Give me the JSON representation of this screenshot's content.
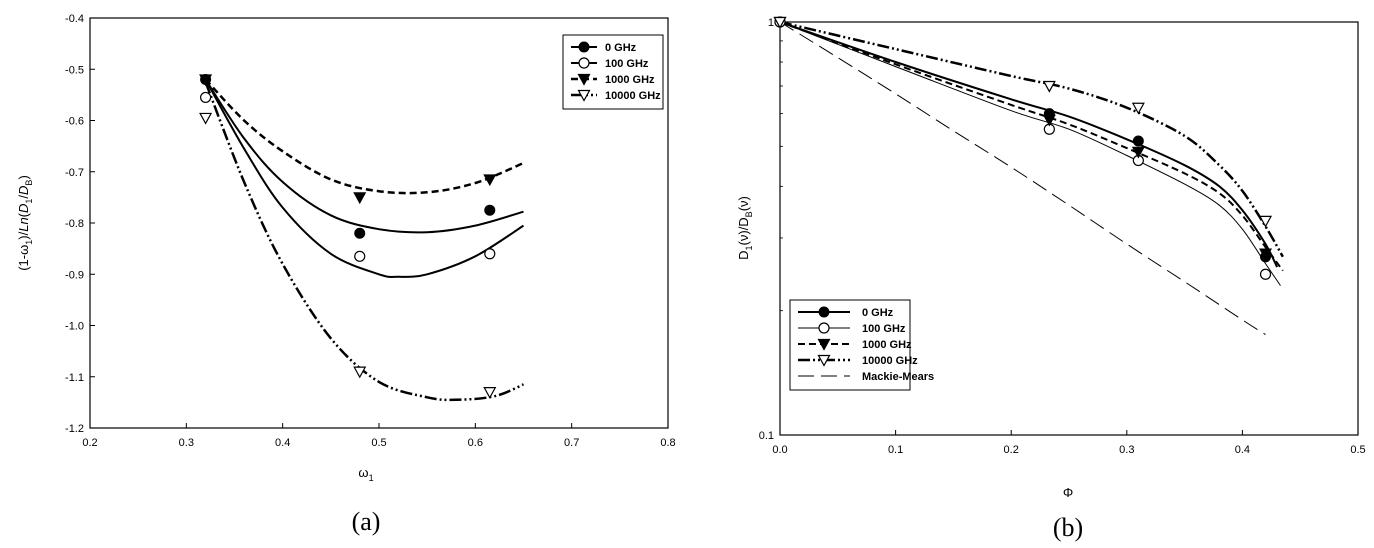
{
  "chart_data": [
    {
      "type": "line",
      "panel_label": "(a)",
      "xlabel": "ω",
      "xlabel_sub": "1",
      "ylabel": "(1-ω)/Ln(D/D)",
      "xlim": [
        0.2,
        0.8
      ],
      "ylim": [
        -1.2,
        -0.4
      ],
      "xticks": [
        "0.2",
        "0.3",
        "0.4",
        "0.5",
        "0.6",
        "0.7",
        "0.8"
      ],
      "yticks": [
        "-1.2",
        "-1.1",
        "-1.0",
        "-0.9",
        "-0.8",
        "-0.7",
        "-0.6",
        "-0.5",
        "-0.4"
      ],
      "grid": false,
      "legend_position": "top-right",
      "series": [
        {
          "name": "0 GHz",
          "marker": "filled-circle",
          "line_style": "solid",
          "line_width": 2,
          "points": [
            [
              0.32,
              -0.52
            ],
            [
              0.48,
              -0.82
            ],
            [
              0.615,
              -0.775
            ]
          ],
          "curve": [
            [
              0.32,
              -0.52
            ],
            [
              0.36,
              -0.635
            ],
            [
              0.4,
              -0.72
            ],
            [
              0.45,
              -0.785
            ],
            [
              0.5,
              -0.812
            ],
            [
              0.55,
              -0.818
            ],
            [
              0.6,
              -0.805
            ],
            [
              0.65,
              -0.778
            ]
          ]
        },
        {
          "name": "100 GHz",
          "marker": "open-circle",
          "line_style": "solid",
          "line_width": 2,
          "points": [
            [
              0.32,
              -0.555
            ],
            [
              0.48,
              -0.865
            ],
            [
              0.615,
              -0.86
            ]
          ],
          "curve": [
            [
              0.32,
              -0.52
            ],
            [
              0.36,
              -0.655
            ],
            [
              0.4,
              -0.77
            ],
            [
              0.45,
              -0.86
            ],
            [
              0.5,
              -0.9
            ],
            [
              0.52,
              -0.905
            ],
            [
              0.55,
              -0.9
            ],
            [
              0.6,
              -0.865
            ],
            [
              0.65,
              -0.805
            ]
          ]
        },
        {
          "name": "1000 GHz",
          "marker": "filled-triangle-down",
          "line_style": "dashed",
          "line_width": 2.5,
          "points": [
            [
              0.32,
              -0.52
            ],
            [
              0.48,
              -0.75
            ],
            [
              0.615,
              -0.715
            ]
          ],
          "curve": [
            [
              0.32,
              -0.52
            ],
            [
              0.36,
              -0.6
            ],
            [
              0.4,
              -0.66
            ],
            [
              0.45,
              -0.715
            ],
            [
              0.5,
              -0.738
            ],
            [
              0.55,
              -0.74
            ],
            [
              0.6,
              -0.722
            ],
            [
              0.65,
              -0.683
            ]
          ]
        },
        {
          "name": "10000 GHz",
          "marker": "open-triangle-down",
          "line_style": "dash-dot-dot",
          "line_width": 2.5,
          "points": [
            [
              0.32,
              -0.595
            ],
            [
              0.48,
              -1.09
            ],
            [
              0.615,
              -1.13
            ]
          ],
          "curve": [
            [
              0.32,
              -0.525
            ],
            [
              0.36,
              -0.72
            ],
            [
              0.4,
              -0.88
            ],
            [
              0.45,
              -1.025
            ],
            [
              0.5,
              -1.11
            ],
            [
              0.55,
              -1.14
            ],
            [
              0.58,
              -1.145
            ],
            [
              0.62,
              -1.138
            ],
            [
              0.65,
              -1.115
            ]
          ]
        }
      ]
    },
    {
      "type": "line",
      "panel_label": "(b)",
      "xlabel": "Φ",
      "ylabel": "D(ν)/D(ν)",
      "xlim": [
        0.0,
        0.5
      ],
      "ylim": [
        0.1,
        1
      ],
      "y_scale": "log",
      "xticks": [
        "0.0",
        "0.1",
        "0.2",
        "0.3",
        "0.4",
        "0.5"
      ],
      "yticks": [
        "0.1",
        "1"
      ],
      "grid": false,
      "legend_position": "bottom-left",
      "series": [
        {
          "name": "0 GHz",
          "marker": "filled-circle",
          "line_style": "solid",
          "line_width": 2,
          "points": [
            [
              0.0,
              1.0
            ],
            [
              0.233,
              0.6
            ],
            [
              0.31,
              0.515
            ],
            [
              0.42,
              0.27
            ]
          ],
          "curve": [
            [
              0.0,
              1.0
            ],
            [
              0.1,
              0.8
            ],
            [
              0.2,
              0.65
            ],
            [
              0.25,
              0.59
            ],
            [
              0.3,
              0.52
            ],
            [
              0.35,
              0.45
            ],
            [
              0.38,
              0.4
            ],
            [
              0.4,
              0.35
            ],
            [
              0.42,
              0.29
            ],
            [
              0.43,
              0.255
            ]
          ]
        },
        {
          "name": "100 GHz",
          "marker": "open-circle",
          "line_style": "solid",
          "line_width": 1,
          "points": [
            [
              0.0,
              1.0
            ],
            [
              0.233,
              0.55
            ],
            [
              0.31,
              0.462
            ],
            [
              0.42,
              0.245
            ]
          ],
          "curve": [
            [
              0.0,
              1.0
            ],
            [
              0.1,
              0.78
            ],
            [
              0.2,
              0.61
            ],
            [
              0.25,
              0.55
            ],
            [
              0.3,
              0.475
            ],
            [
              0.35,
              0.405
            ],
            [
              0.38,
              0.36
            ],
            [
              0.4,
              0.315
            ],
            [
              0.42,
              0.26
            ],
            [
              0.433,
              0.23
            ]
          ]
        },
        {
          "name": "1000 GHz",
          "marker": "filled-triangle-down",
          "line_style": "dashed",
          "line_width": 2,
          "points": [
            [
              0.0,
              1.0
            ],
            [
              0.233,
              0.58
            ],
            [
              0.31,
              0.485
            ],
            [
              0.42,
              0.275
            ]
          ],
          "curve": [
            [
              0.0,
              1.0
            ],
            [
              0.1,
              0.79
            ],
            [
              0.2,
              0.63
            ],
            [
              0.25,
              0.565
            ],
            [
              0.3,
              0.495
            ],
            [
              0.35,
              0.43
            ],
            [
              0.38,
              0.385
            ],
            [
              0.4,
              0.34
            ],
            [
              0.42,
              0.285
            ],
            [
              0.435,
              0.25
            ]
          ]
        },
        {
          "name": "10000 GHz",
          "marker": "open-triangle-down",
          "line_style": "dash-dot-dot",
          "line_width": 2.5,
          "points": [
            [
              0.0,
              1.0
            ],
            [
              0.233,
              0.7
            ],
            [
              0.31,
              0.62
            ],
            [
              0.42,
              0.33
            ]
          ],
          "curve": [
            [
              0.0,
              1.0
            ],
            [
              0.1,
              0.86
            ],
            [
              0.2,
              0.74
            ],
            [
              0.25,
              0.69
            ],
            [
              0.3,
              0.62
            ],
            [
              0.35,
              0.53
            ],
            [
              0.38,
              0.45
            ],
            [
              0.4,
              0.39
            ],
            [
              0.42,
              0.32
            ],
            [
              0.435,
              0.27
            ]
          ]
        },
        {
          "name": "Mackie-Mears",
          "marker": "none",
          "line_style": "long-dash",
          "line_width": 1,
          "points": [],
          "curve": [
            [
              0.0,
              1.0
            ],
            [
              0.05,
              0.82
            ],
            [
              0.1,
              0.67
            ],
            [
              0.15,
              0.545
            ],
            [
              0.2,
              0.445
            ],
            [
              0.25,
              0.36
            ],
            [
              0.3,
              0.29
            ],
            [
              0.35,
              0.235
            ],
            [
              0.4,
              0.19
            ],
            [
              0.42,
              0.175
            ]
          ]
        }
      ]
    }
  ]
}
